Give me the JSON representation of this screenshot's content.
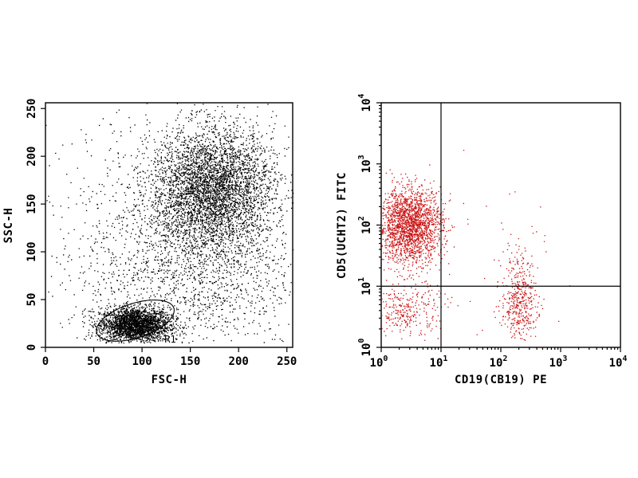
{
  "chart_data": [
    {
      "type": "scatter",
      "xlabel": "FSC-H",
      "ylabel": "SSC-H",
      "xlim": [
        0,
        256
      ],
      "ylim": [
        0,
        256
      ],
      "xticks": [
        "0",
        "50",
        "100",
        "150",
        "200",
        "250"
      ],
      "yticks": [
        "0",
        "50",
        "100",
        "150",
        "200",
        "250"
      ],
      "scale": "linear",
      "color": "#000000",
      "gate": {
        "label": "R1",
        "center": [
          93,
          28
        ],
        "radius": [
          42,
          18
        ],
        "angle_deg": 18
      },
      "populations": [
        {
          "center": [
            92,
            24
          ],
          "spread": [
            18,
            9
          ],
          "count": 2600
        },
        {
          "center": [
            172,
            165
          ],
          "spread": [
            32,
            32
          ],
          "count": 4200
        },
        {
          "center": [
            150,
            75
          ],
          "spread": [
            55,
            40
          ],
          "count": 1300
        },
        {
          "center": [
            130,
            130
          ],
          "spread": [
            80,
            70
          ],
          "count": 700
        }
      ]
    },
    {
      "type": "scatter",
      "xlabel": "CD19(CB19) PE",
      "ylabel": "CD5(UCHT2) FITC",
      "xlim": [
        1,
        10000
      ],
      "ylim": [
        1,
        10000
      ],
      "scale": "log",
      "xticks": [
        {
          "base": "10",
          "exp": "0"
        },
        {
          "base": "10",
          "exp": "1"
        },
        {
          "base": "10",
          "exp": "2"
        },
        {
          "base": "10",
          "exp": "3"
        },
        {
          "base": "10",
          "exp": "4"
        }
      ],
      "yticks": [
        {
          "base": "10",
          "exp": "0"
        },
        {
          "base": "10",
          "exp": "1"
        },
        {
          "base": "10",
          "exp": "2"
        },
        {
          "base": "10",
          "exp": "3"
        },
        {
          "base": "10",
          "exp": "4"
        }
      ],
      "quadrant_lines": {
        "x": 10,
        "y": 10
      },
      "color": "#cc1111",
      "populations": [
        {
          "center": [
            3,
            100
          ],
          "spread_decades": [
            0.27,
            0.3
          ],
          "count": 2000
        },
        {
          "center": [
            2.5,
            4
          ],
          "spread_decades": [
            0.28,
            0.25
          ],
          "count": 320
        },
        {
          "center": [
            200,
            5
          ],
          "spread_decades": [
            0.15,
            0.28
          ],
          "count": 380
        },
        {
          "center": [
            200,
            25
          ],
          "spread_decades": [
            0.12,
            0.2
          ],
          "count": 60
        },
        {
          "center": [
            30,
            10
          ],
          "spread_decades": [
            0.9,
            0.9
          ],
          "count": 60
        }
      ]
    }
  ]
}
